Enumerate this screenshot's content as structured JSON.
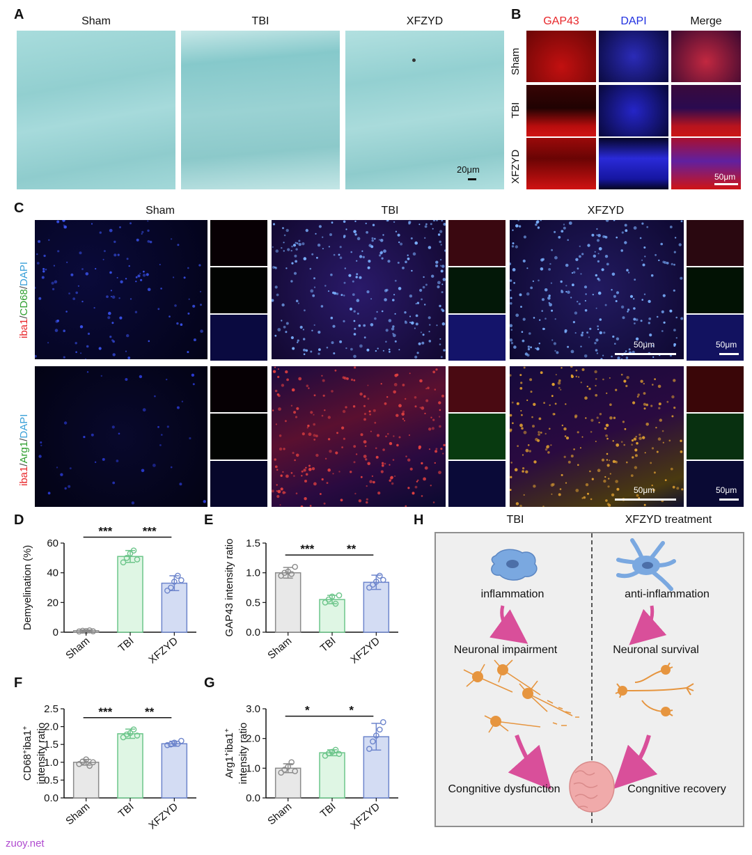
{
  "panel_letters": {
    "A": "A",
    "B": "B",
    "C": "C",
    "D": "D",
    "E": "E",
    "F": "F",
    "G": "G",
    "H": "H"
  },
  "panelA": {
    "titles": [
      "Sham",
      "TBI",
      "XFZYD"
    ],
    "scale_label": "20μm",
    "image_color": "#9dd5d6"
  },
  "panelB": {
    "columns": [
      "GAP43",
      "DAPI",
      "Merge"
    ],
    "column_colors": [
      "#e8262a",
      "#1f2fe0",
      "#111111"
    ],
    "rows": [
      "Sham",
      "TBI",
      "XFZYD"
    ],
    "scale_label": "50μm"
  },
  "panelC": {
    "titles": [
      "Sham",
      "TBI",
      "XFZYD"
    ],
    "row1_label": {
      "p1": "iba1",
      "s1": "/",
      "p2": "CD68",
      "s2": "/",
      "p3": "DAPI"
    },
    "row2_label": {
      "p1": "iba1",
      "s1": "/",
      "p2": "Arg1",
      "s2": "/",
      "p3": "DAPI"
    },
    "label_colors": {
      "iba1": "#e8262a",
      "green": "#2e9e2e",
      "dapi": "#3aa0d8",
      "sep": "#444444"
    },
    "scale_label": "50μm"
  },
  "charts": {
    "D": {
      "type": "bar",
      "ylabel": "Demyelination (%)",
      "ylim": [
        0,
        60
      ],
      "yticks": [
        "0",
        "20",
        "40",
        "60"
      ],
      "categories": [
        "Sham",
        "TBI",
        "XFZYD"
      ],
      "values": [
        1,
        51,
        33
      ],
      "errors": [
        0.5,
        4,
        5
      ],
      "points": [
        [
          0.5,
          1,
          0.8,
          1.2,
          0.6
        ],
        [
          47,
          50,
          53,
          55,
          49
        ],
        [
          28,
          30,
          34,
          38,
          35
        ]
      ],
      "sig": [
        {
          "from": 0,
          "to": 1,
          "label": "***"
        },
        {
          "from": 1,
          "to": 2,
          "label": "***"
        }
      ],
      "sig_y": [
        64,
        64
      ]
    },
    "E": {
      "type": "bar",
      "ylabel": "GAP43 intensity ratio",
      "ylim": [
        0,
        1.5
      ],
      "yticks": [
        "0.0",
        "0.5",
        "1.0",
        "1.5"
      ],
      "categories": [
        "Sham",
        "TBI",
        "XFZYD"
      ],
      "values": [
        1.0,
        0.55,
        0.84
      ],
      "errors": [
        0.09,
        0.07,
        0.12
      ],
      "points": [
        [
          0.95,
          1.0,
          1.02,
          0.98,
          1.1
        ],
        [
          0.5,
          0.55,
          0.6,
          0.48,
          0.62
        ],
        [
          0.75,
          0.8,
          0.85,
          0.95,
          0.88
        ]
      ],
      "sig": [
        {
          "from": 0,
          "to": 1,
          "label": "***"
        },
        {
          "from": 1,
          "to": 2,
          "label": "**"
        }
      ],
      "sig_y": [
        1.3,
        1.3
      ]
    },
    "F": {
      "type": "bar",
      "ylabel": "CD68+iba1+ intensity ratio",
      "ylim": [
        0,
        2.5
      ],
      "yticks": [
        "0.0",
        "0.5",
        "1.0",
        "1.5",
        "2.0",
        "2.5"
      ],
      "categories": [
        "Sham",
        "TBI",
        "XFZYD"
      ],
      "values": [
        1.0,
        1.8,
        1.52
      ],
      "errors": [
        0.08,
        0.13,
        0.07
      ],
      "points": [
        [
          0.95,
          1.02,
          1.08,
          0.9,
          1.0
        ],
        [
          1.7,
          1.78,
          1.82,
          1.92,
          1.75
        ],
        [
          1.48,
          1.5,
          1.55,
          1.52,
          1.6
        ]
      ],
      "sig": [
        {
          "from": 0,
          "to": 1,
          "label": "***"
        },
        {
          "from": 1,
          "to": 2,
          "label": "**"
        }
      ],
      "sig_y": [
        2.25,
        2.25
      ]
    },
    "G": {
      "type": "bar",
      "ylabel": "Arg1+iba1+ intensity ratio",
      "ylim": [
        0,
        3.0
      ],
      "yticks": [
        "0.0",
        "1.0",
        "2.0",
        "3.0"
      ],
      "categories": [
        "Sham",
        "TBI",
        "XFZYD"
      ],
      "values": [
        1.0,
        1.52,
        2.06
      ],
      "errors": [
        0.15,
        0.1,
        0.45
      ],
      "points": [
        [
          0.85,
          0.95,
          1.05,
          1.2,
          0.9
        ],
        [
          1.42,
          1.5,
          1.55,
          1.62,
          1.48
        ],
        [
          1.65,
          1.9,
          2.1,
          2.3,
          2.55
        ]
      ],
      "sig": [
        {
          "from": 0,
          "to": 1,
          "label": "*"
        },
        {
          "from": 1,
          "to": 2,
          "label": "*"
        }
      ],
      "sig_y": [
        2.75,
        2.75
      ]
    }
  },
  "chart_colors": {
    "sham_fill": "#e8e8e8",
    "sham_stroke": "#8a8a8a",
    "tbi_fill": "#dff6e4",
    "tbi_stroke": "#6cc58a",
    "xfzyd_fill": "#d3dcf3",
    "xfzyd_stroke": "#6d85cc"
  },
  "panelH": {
    "left_header": "TBI",
    "right_header": "XFZYD treatment",
    "left": {
      "state": "inflammation",
      "neuron": "Neuronal impairment",
      "outcome": "Congnitive dysfunction"
    },
    "right": {
      "state": "anti-inflammation",
      "neuron": "Neuronal survival",
      "outcome": "Congnitive recovery"
    },
    "box_fill": "#efefef",
    "arrow_color": "#d94f9a",
    "cell_color": "#7aa8e0",
    "neuron_color": "#e6953f",
    "brain_color": "#f0aaaa"
  },
  "watermark": "zuoy.net"
}
